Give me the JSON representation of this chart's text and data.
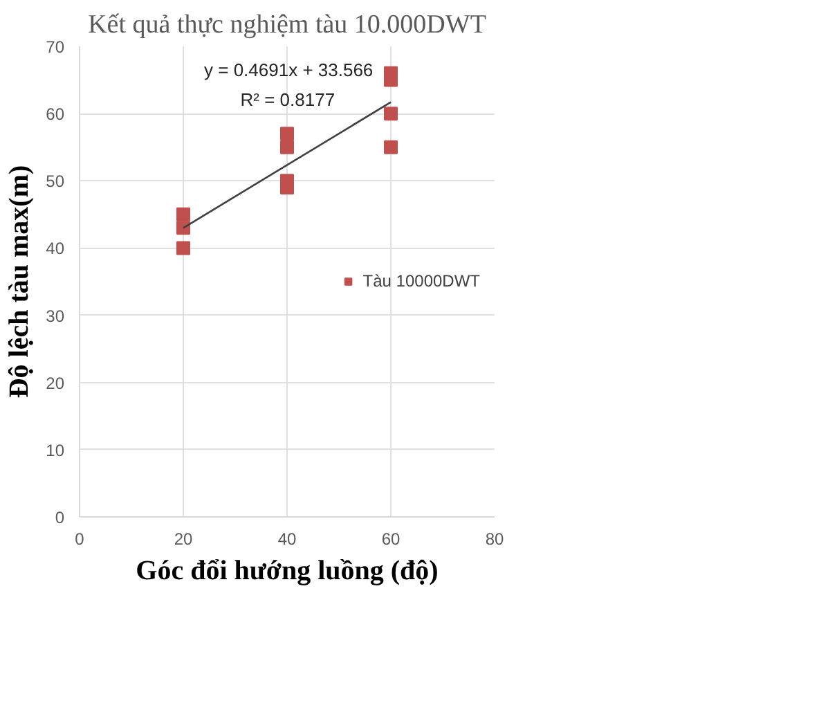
{
  "chart_data": {
    "type": "scatter",
    "title": "Kết quả thực nghiệm tàu 10.000DWT",
    "xlabel": "Góc đổi hướng luồng (độ)",
    "ylabel": "Độ lệch tàu max(m)",
    "annotations": [
      "y = 0.4691x + 33.566",
      "R² = 0.8177"
    ],
    "series": [
      {
        "name": "Tàu 10000DWT",
        "color": "#c0504d",
        "marker": "square",
        "x": [
          20,
          20,
          20,
          40,
          40,
          40,
          40,
          60,
          60,
          60,
          60
        ],
        "values": [
          45,
          43,
          40,
          57,
          55,
          50,
          49,
          66,
          65,
          60,
          55
        ]
      },
      {
        "type": "line",
        "color": "#404040",
        "x": [
          20,
          60
        ],
        "values": [
          43,
          61.7
        ]
      }
    ],
    "xlim": [
      0,
      80
    ],
    "xticks": [
      0,
      20,
      40,
      60,
      80
    ],
    "ylim": [
      0,
      70
    ],
    "yticks": [
      0,
      10,
      20,
      30,
      40,
      50,
      60,
      70
    ],
    "grid": true,
    "legend": "right"
  }
}
